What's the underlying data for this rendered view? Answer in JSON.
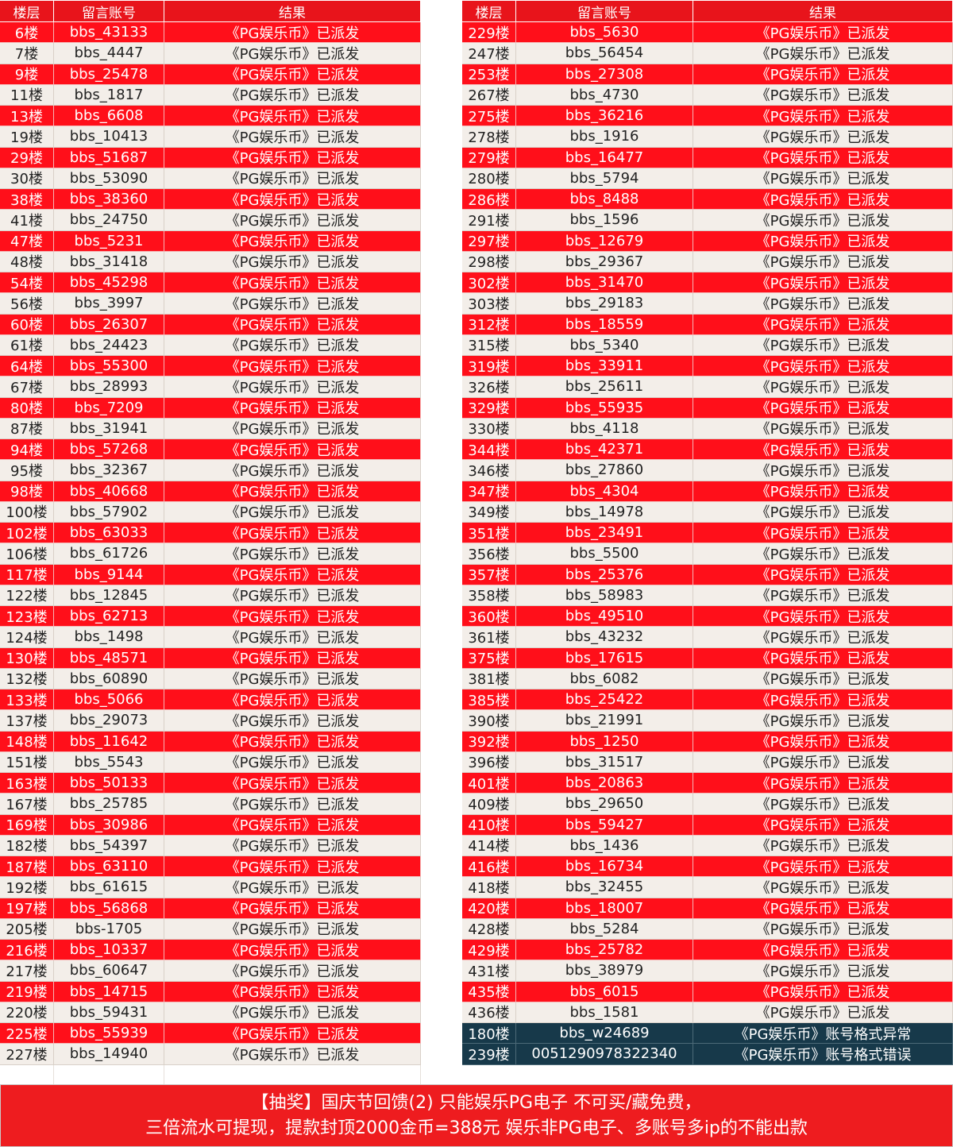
{
  "left": {
    "headers": [
      "楼层",
      "留言账号",
      "结果"
    ],
    "rows": [
      [
        "6楼",
        "bbs_43133",
        "《PG娱乐币》已派发"
      ],
      [
        "7楼",
        "bbs_4447",
        "《PG娱乐币》已派发"
      ],
      [
        "9楼",
        "bbs_25478",
        "《PG娱乐币》已派发"
      ],
      [
        "11楼",
        "bbs_1817",
        "《PG娱乐币》已派发"
      ],
      [
        "13楼",
        "bbs_6608",
        "《PG娱乐币》已派发"
      ],
      [
        "19楼",
        "bbs_10413",
        "《PG娱乐币》已派发"
      ],
      [
        "29楼",
        "bbs_51687",
        "《PG娱乐币》已派发"
      ],
      [
        "30楼",
        "bbs_53090",
        "《PG娱乐币》已派发"
      ],
      [
        "38楼",
        "bbs_38360",
        "《PG娱乐币》已派发"
      ],
      [
        "41楼",
        "bbs_24750",
        "《PG娱乐币》已派发"
      ],
      [
        "47楼",
        "bbs_5231",
        "《PG娱乐币》已派发"
      ],
      [
        "48楼",
        "bbs_31418",
        "《PG娱乐币》已派发"
      ],
      [
        "54楼",
        "bbs_45298",
        "《PG娱乐币》已派发"
      ],
      [
        "56楼",
        "bbs_3997",
        "《PG娱乐币》已派发"
      ],
      [
        "60楼",
        "bbs_26307",
        "《PG娱乐币》已派发"
      ],
      [
        "61楼",
        "bbs_24423",
        "《PG娱乐币》已派发"
      ],
      [
        "64楼",
        "bbs_55300",
        "《PG娱乐币》已派发"
      ],
      [
        "67楼",
        "bbs_28993",
        "《PG娱乐币》已派发"
      ],
      [
        "80楼",
        "bbs_7209",
        "《PG娱乐币》已派发"
      ],
      [
        "87楼",
        "bbs_31941",
        "《PG娱乐币》已派发"
      ],
      [
        "94楼",
        "bbs_57268",
        "《PG娱乐币》已派发"
      ],
      [
        "95楼",
        "bbs_32367",
        "《PG娱乐币》已派发"
      ],
      [
        "98楼",
        "bbs_40668",
        "《PG娱乐币》已派发"
      ],
      [
        "100楼",
        "bbs_57902",
        "《PG娱乐币》已派发"
      ],
      [
        "102楼",
        "bbs_63033",
        "《PG娱乐币》已派发"
      ],
      [
        "106楼",
        "bbs_61726",
        "《PG娱乐币》已派发"
      ],
      [
        "117楼",
        "bbs_9144",
        "《PG娱乐币》已派发"
      ],
      [
        "122楼",
        "bbs_12845",
        "《PG娱乐币》已派发"
      ],
      [
        "123楼",
        "bbs_62713",
        "《PG娱乐币》已派发"
      ],
      [
        "124楼",
        "bbs_1498",
        "《PG娱乐币》已派发"
      ],
      [
        "130楼",
        "bbs_48571",
        "《PG娱乐币》已派发"
      ],
      [
        "132楼",
        "bbs_60890",
        "《PG娱乐币》已派发"
      ],
      [
        "133楼",
        "bbs_5066",
        "《PG娱乐币》已派发"
      ],
      [
        "137楼",
        "bbs_29073",
        "《PG娱乐币》已派发"
      ],
      [
        "148楼",
        "bbs_11642",
        "《PG娱乐币》已派发"
      ],
      [
        "151楼",
        "bbs_5543",
        "《PG娱乐币》已派发"
      ],
      [
        "163楼",
        "bbs_50133",
        "《PG娱乐币》已派发"
      ],
      [
        "167楼",
        "bbs_25785",
        "《PG娱乐币》已派发"
      ],
      [
        "169楼",
        "bbs_30986",
        "《PG娱乐币》已派发"
      ],
      [
        "182楼",
        "bbs_54397",
        "《PG娱乐币》已派发"
      ],
      [
        "187楼",
        "bbs_63110",
        "《PG娱乐币》已派发"
      ],
      [
        "192楼",
        "bbs_61615",
        "《PG娱乐币》已派发"
      ],
      [
        "197楼",
        "bbs_56868",
        "《PG娱乐币》已派发"
      ],
      [
        "205楼",
        "bbs-1705",
        "《PG娱乐币》已派发"
      ],
      [
        "216楼",
        "bbs_10337",
        "《PG娱乐币》已派发"
      ],
      [
        "217楼",
        "bbs_60647",
        "《PG娱乐币》已派发"
      ],
      [
        "219楼",
        "bbs_14715",
        "《PG娱乐币》已派发"
      ],
      [
        "220楼",
        "bbs_59431",
        "《PG娱乐币》已派发"
      ],
      [
        "225楼",
        "bbs_55939",
        "《PG娱乐币》已派发"
      ],
      [
        "227楼",
        "bbs_14940",
        "《PG娱乐币》已派发"
      ]
    ]
  },
  "right": {
    "headers": [
      "楼层",
      "留言账号",
      "结果"
    ],
    "rows": [
      [
        "229楼",
        "bbs_5630",
        "《PG娱乐币》已派发"
      ],
      [
        "247楼",
        "bbs_56454",
        "《PG娱乐币》已派发"
      ],
      [
        "253楼",
        "bbs_27308",
        "《PG娱乐币》已派发"
      ],
      [
        "267楼",
        "bbs_4730",
        "《PG娱乐币》已派发"
      ],
      [
        "275楼",
        "bbs_36216",
        "《PG娱乐币》已派发"
      ],
      [
        "278楼",
        "bbs_1916",
        "《PG娱乐币》已派发"
      ],
      [
        "279楼",
        "bbs_16477",
        "《PG娱乐币》已派发"
      ],
      [
        "280楼",
        "bbs_5794",
        "《PG娱乐币》已派发"
      ],
      [
        "286楼",
        "bbs_8488",
        "《PG娱乐币》已派发"
      ],
      [
        "291楼",
        "bbs_1596",
        "《PG娱乐币》已派发"
      ],
      [
        "297楼",
        "bbs_12679",
        "《PG娱乐币》已派发"
      ],
      [
        "298楼",
        "bbs_29367",
        "《PG娱乐币》已派发"
      ],
      [
        "302楼",
        "bbs_31470",
        "《PG娱乐币》已派发"
      ],
      [
        "303楼",
        "bbs_29183",
        "《PG娱乐币》已派发"
      ],
      [
        "312楼",
        "bbs_18559",
        "《PG娱乐币》已派发"
      ],
      [
        "315楼",
        "bbs_5340",
        "《PG娱乐币》已派发"
      ],
      [
        "319楼",
        "bbs_33911",
        "《PG娱乐币》已派发"
      ],
      [
        "326楼",
        "bbs_25611",
        "《PG娱乐币》已派发"
      ],
      [
        "329楼",
        "bbs_55935",
        "《PG娱乐币》已派发"
      ],
      [
        "330楼",
        "bbs_4118",
        "《PG娱乐币》已派发"
      ],
      [
        "344楼",
        "bbs_42371",
        "《PG娱乐币》已派发"
      ],
      [
        "346楼",
        "bbs_27860",
        "《PG娱乐币》已派发"
      ],
      [
        "347楼",
        "bbs_4304",
        "《PG娱乐币》已派发"
      ],
      [
        "349楼",
        "bbs_14978",
        "《PG娱乐币》已派发"
      ],
      [
        "351楼",
        "bbs_23491",
        "《PG娱乐币》已派发"
      ],
      [
        "356楼",
        "bbs_5500",
        "《PG娱乐币》已派发"
      ],
      [
        "357楼",
        "bbs_25376",
        "《PG娱乐币》已派发"
      ],
      [
        "358楼",
        "bbs_58983",
        "《PG娱乐币》已派发"
      ],
      [
        "360楼",
        "bbs_49510",
        "《PG娱乐币》已派发"
      ],
      [
        "361楼",
        "bbs_43232",
        "《PG娱乐币》已派发"
      ],
      [
        "375楼",
        "bbs_17615",
        "《PG娱乐币》已派发"
      ],
      [
        "381楼",
        "bbs_6082",
        "《PG娱乐币》已派发"
      ],
      [
        "385楼",
        "bbs_25422",
        "《PG娱乐币》已派发"
      ],
      [
        "390楼",
        "bbs_21991",
        "《PG娱乐币》已派发"
      ],
      [
        "392楼",
        "bbs_1250",
        "《PG娱乐币》已派发"
      ],
      [
        "396楼",
        "bbs_31517",
        "《PG娱乐币》已派发"
      ],
      [
        "401楼",
        "bbs_20863",
        "《PG娱乐币》已派发"
      ],
      [
        "409楼",
        "bbs_29650",
        "《PG娱乐币》已派发"
      ],
      [
        "410楼",
        "bbs_59427",
        "《PG娱乐币》已派发"
      ],
      [
        "414楼",
        "bbs_1436",
        "《PG娱乐币》已派发"
      ],
      [
        "416楼",
        "bbs_16734",
        "《PG娱乐币》已派发"
      ],
      [
        "418楼",
        "bbs_32455",
        "《PG娱乐币》已派发"
      ],
      [
        "420楼",
        "bbs_18007",
        "《PG娱乐币》已派发"
      ],
      [
        "428楼",
        "bbs_5284",
        "《PG娱乐币》已派发"
      ],
      [
        "429楼",
        "bbs_25782",
        "《PG娱乐币》已派发"
      ],
      [
        "431楼",
        "bbs_38979",
        "《PG娱乐币》已派发"
      ],
      [
        "435楼",
        "bbs_6015",
        "《PG娱乐币》已派发"
      ],
      [
        "436楼",
        "bbs_1581",
        "《PG娱乐币》已派发"
      ],
      [
        "180楼",
        "bbs_w24689",
        "《PG娱乐币》账号格式异常"
      ],
      [
        "239楼",
        "0051290978322340",
        "《PG娱乐币》账号格式错误"
      ]
    ]
  },
  "footer": {
    "lines": [
      "【抽奖】国庆节回馈(2) 只能娱乐PG电子 不可买/藏免费，",
      "三倍流水可提现，提款封顶2000金币=388元 娱乐非PG电子、多账号多ip的不能出款"
    ]
  }
}
